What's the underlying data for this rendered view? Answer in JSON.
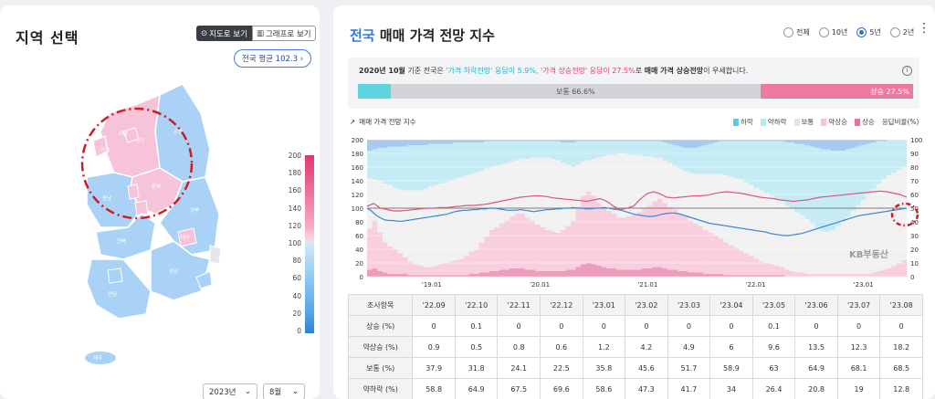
{
  "left": {
    "title": "지역 선택",
    "view_map": "지도로 보기",
    "view_graph": "그래프로 보기",
    "national_avg": "전국 평균 102.3",
    "regions": [
      "서울",
      "경기",
      "강원",
      "인천",
      "충북",
      "충남",
      "세종",
      "대전",
      "경북",
      "대구",
      "전북",
      "경남",
      "광주",
      "전남",
      "부산",
      "울산",
      "제주"
    ],
    "legend_ticks": [
      "200",
      "180",
      "160",
      "140",
      "120",
      "100",
      "80",
      "60",
      "40",
      "20",
      "0"
    ],
    "year_select": "2023년",
    "month_select": "8월"
  },
  "right": {
    "title_highlight": "전국",
    "title_rest": "매매 가격 전망 지수",
    "period_options": [
      "전체",
      "10년",
      "5년",
      "2년"
    ],
    "period_selected": "5년",
    "info_prefix": "2020년 10월",
    "info_mid1": " 기준 전국은 ",
    "info_down": "'가격 하락전망' 응답이 5.9%,",
    "info_sep": " ",
    "info_up": "'가격 상승전망' 응답이 27.5%",
    "info_mid2": "로 ",
    "info_bold": "매매 가격 상승전망",
    "info_end": "이 우세합니다.",
    "ratio": {
      "down": 5.9,
      "flat": 66.6,
      "up": 27.5,
      "flat_label": "보통 66.6%",
      "up_label": "상승 27.5%"
    },
    "chart_label": "매매 가격 전망 지수",
    "legend": [
      {
        "label": "하락",
        "color": "#5bc8e6"
      },
      {
        "label": "약하락",
        "color": "#b6e6f2"
      },
      {
        "label": "보통",
        "color": "#e4e4e6"
      },
      {
        "label": "약상승",
        "color": "#f6c3d6"
      },
      {
        "label": "상승",
        "color": "#ee6e9c"
      }
    ],
    "legend_ratio": "응답비율(%)",
    "watermark": "KB부동산",
    "table": {
      "head": [
        "조사항목",
        "'22.09",
        "'22.10",
        "'22.11",
        "'22.12",
        "'23.01",
        "'23.02",
        "'23.03",
        "'23.04",
        "'23.05",
        "'23.06",
        "'23.07",
        "'23.08"
      ],
      "rows": [
        [
          "상승 (%)",
          "0",
          "0.1",
          "0",
          "0",
          "0",
          "0",
          "0",
          "0",
          "0.1",
          "0",
          "0",
          "0"
        ],
        [
          "약상승 (%)",
          "0.9",
          "0.5",
          "0.8",
          "0.6",
          "1.2",
          "4.2",
          "4.9",
          "6",
          "9.6",
          "13.5",
          "12.3",
          "18.2"
        ],
        [
          "보통 (%)",
          "37.9",
          "31.8",
          "24.1",
          "22.5",
          "35.8",
          "45.6",
          "51.7",
          "58.9",
          "63",
          "64.9",
          "68.1",
          "68.5"
        ],
        [
          "약하락 (%)",
          "58.8",
          "64.9",
          "67.5",
          "69.6",
          "58.6",
          "47.3",
          "41.7",
          "34",
          "26.4",
          "20.8",
          "19",
          "12.8"
        ]
      ]
    }
  },
  "chart_data": {
    "type": "line",
    "title": "",
    "x_tick_labels": [
      "'19.01",
      "'20.01",
      "'21.01",
      "'22.01",
      "'23.01"
    ],
    "y_left": {
      "range": [
        0,
        200
      ],
      "ticks": [
        0,
        20,
        40,
        60,
        80,
        100,
        120,
        140,
        160,
        180,
        200
      ]
    },
    "y_right": {
      "label": "응답비율(%)",
      "range": [
        0,
        100
      ],
      "ticks": [
        0,
        10,
        20,
        30,
        40,
        50,
        60,
        70,
        80,
        90,
        100
      ]
    },
    "reference_line": 100,
    "series": [
      {
        "name": "",
        "color": "#d9577f",
        "values": [
          103,
          107,
          100,
          98,
          96,
          96,
          97,
          98,
          99,
          100,
          100,
          101,
          101,
          102,
          103,
          104,
          104,
          105,
          106,
          108,
          110,
          112,
          114,
          116,
          117,
          118,
          118,
          117,
          115,
          114,
          113,
          112,
          111,
          110,
          112,
          114,
          110,
          103,
          98,
          100,
          103,
          113,
          121,
          124,
          121,
          116,
          115,
          116,
          117,
          118,
          118,
          119,
          121,
          123,
          124,
          123,
          122,
          120,
          118,
          116,
          115,
          114,
          112,
          111,
          110,
          111,
          112,
          114,
          116,
          117,
          118,
          119,
          120,
          121,
          122,
          123,
          124,
          125,
          124,
          122,
          120,
          116
        ]
      },
      {
        "name": "",
        "color": "#3a86d4",
        "values": [
          100,
          96,
          90,
          86,
          83,
          82,
          82,
          81,
          81,
          82,
          83,
          84,
          85,
          86,
          87,
          88,
          89,
          90,
          91,
          93,
          95,
          96,
          97,
          97,
          98,
          98,
          99,
          99,
          100,
          100,
          99,
          98,
          97,
          97,
          97,
          98,
          97,
          96,
          95,
          96,
          97,
          98,
          98,
          99,
          99,
          100,
          100,
          101,
          100,
          100,
          99,
          99,
          100,
          100,
          101,
          100,
          99,
          98,
          97,
          95,
          93,
          91,
          90,
          89,
          88,
          88,
          89,
          91,
          92,
          93,
          93,
          92,
          90,
          88,
          86,
          84,
          82,
          80,
          78,
          77,
          76,
          75,
          74,
          73,
          72,
          71,
          70,
          69,
          68,
          67,
          66,
          65,
          63,
          62,
          61,
          60,
          60,
          61,
          62,
          63,
          65,
          67,
          69,
          71,
          73,
          75,
          77,
          79,
          81,
          83,
          85,
          87,
          89,
          90,
          91,
          92,
          93,
          94,
          95,
          96,
          97,
          98,
          99,
          100
        ]
      }
    ],
    "response_bands_pct": {
      "down": [
        8,
        7,
        6,
        6,
        5,
        5,
        5,
        5,
        4,
        4,
        4,
        4,
        3,
        3,
        3,
        3,
        3,
        2,
        2,
        2,
        2,
        2,
        2,
        1,
        1,
        1,
        1,
        1,
        1,
        1,
        1,
        1,
        1,
        1,
        1,
        1,
        1,
        1,
        2,
        2,
        2,
        1,
        1,
        1,
        1,
        1,
        1,
        1,
        1,
        1,
        1,
        1,
        1,
        1,
        1,
        1,
        1,
        1,
        2,
        3,
        4,
        5,
        6,
        6,
        6,
        5,
        4,
        3,
        2,
        1,
        1,
        1,
        1,
        1,
        1,
        1,
        1,
        1,
        1,
        1,
        1,
        1,
        2,
        2,
        3,
        3,
        4,
        5,
        6,
        7,
        7,
        8,
        8,
        8,
        7,
        6,
        5,
        4,
        3,
        2,
        1,
        1,
        0,
        0,
        0,
        0
      ],
      "weak_down": [
        20,
        22,
        24,
        26,
        28,
        30,
        31,
        32,
        33,
        33,
        33,
        32,
        31,
        30,
        29,
        28,
        27,
        26,
        25,
        24,
        23,
        22,
        21,
        20,
        19,
        18,
        17,
        16,
        15,
        14,
        13,
        13,
        12,
        12,
        12,
        12,
        13,
        14,
        15,
        16,
        18,
        17,
        15,
        14,
        13,
        12,
        11,
        10,
        10,
        9,
        9,
        10,
        10,
        10,
        11,
        11,
        12,
        12,
        13,
        14,
        15,
        16,
        17,
        18,
        19,
        20,
        21,
        22,
        23,
        24,
        25,
        26,
        27,
        28,
        30,
        32,
        34,
        36,
        38,
        40,
        42,
        44,
        46,
        48,
        50,
        52,
        54,
        56,
        58,
        60,
        60,
        58,
        55,
        52,
        49,
        46,
        43,
        40,
        37,
        34,
        31,
        28,
        26,
        24,
        22,
        20
      ],
      "weak_up": [
        30,
        35,
        28,
        22,
        20,
        18,
        15,
        12,
        10,
        8,
        7,
        6,
        6,
        7,
        8,
        9,
        10,
        11,
        12,
        14,
        16,
        18,
        22,
        26,
        30,
        32,
        34,
        36,
        38,
        40,
        40,
        38,
        36,
        34,
        32,
        30,
        29,
        28,
        30,
        32,
        36,
        44,
        50,
        52,
        50,
        46,
        44,
        42,
        40,
        38,
        38,
        39,
        40,
        42,
        44,
        46,
        48,
        50,
        48,
        46,
        44,
        42,
        40,
        38,
        36,
        34,
        32,
        30,
        28,
        26,
        24,
        22,
        20,
        18,
        16,
        14,
        12,
        10,
        9,
        8,
        7,
        6,
        5,
        4,
        3,
        3,
        2,
        2,
        2,
        2,
        2,
        2,
        2,
        2,
        2,
        2,
        2,
        2,
        2,
        3,
        4,
        5,
        6,
        8,
        10,
        12
      ],
      "up": [
        5,
        6,
        4,
        3,
        2,
        2,
        2,
        2,
        1,
        1,
        1,
        1,
        1,
        1,
        1,
        1,
        1,
        1,
        1,
        1,
        2,
        2,
        3,
        3,
        4,
        4,
        5,
        5,
        6,
        6,
        6,
        5,
        5,
        4,
        4,
        4,
        4,
        4,
        4,
        5,
        5,
        7,
        9,
        10,
        9,
        8,
        7,
        6,
        6,
        5,
        5,
        5,
        5,
        5,
        6,
        6,
        7,
        7,
        6,
        5,
        5,
        4,
        4,
        3,
        3,
        3,
        2,
        2,
        2,
        2,
        1,
        1,
        1,
        1,
        1,
        1,
        1,
        1,
        1,
        1,
        1,
        1,
        0,
        0,
        0,
        0,
        0,
        0,
        0,
        0,
        0,
        0,
        0,
        0,
        0,
        0,
        0,
        0,
        0,
        0,
        0,
        0,
        0,
        0,
        0,
        0
      ]
    }
  }
}
